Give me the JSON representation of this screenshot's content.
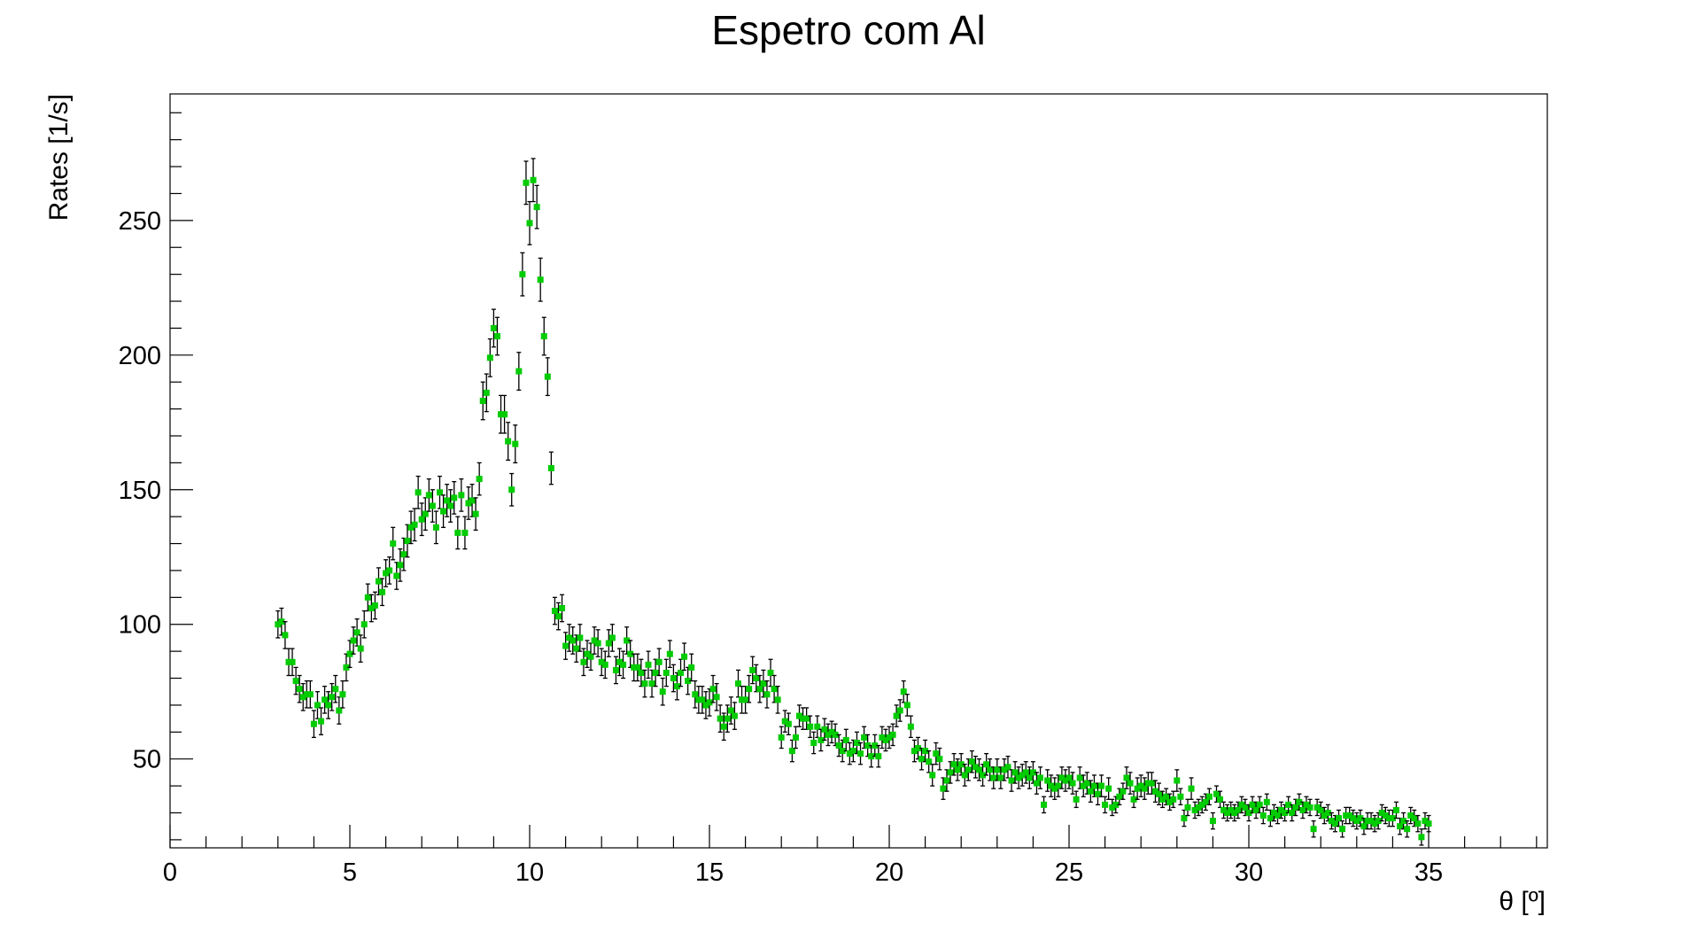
{
  "chart_data": {
    "type": "scatter",
    "title": "Espetro com Al",
    "xlabel": "θ [º]",
    "ylabel": "Rates [1/s]",
    "xlim": [
      0,
      38.3
    ],
    "ylim": [
      17,
      297
    ],
    "x_major_ticks": [
      0,
      5,
      10,
      15,
      20,
      25,
      30,
      35
    ],
    "x_tick_labels": [
      "0",
      "5",
      "10",
      "15",
      "20",
      "25",
      "30",
      "35"
    ],
    "y_major_ticks": [
      50,
      100,
      150,
      200,
      250
    ],
    "y_tick_labels": [
      "50",
      "100",
      "150",
      "200",
      "250"
    ],
    "grid": false,
    "marker_color": "#00cc00",
    "error_bar_color": "#000000",
    "x_error": 0.05,
    "points": [
      [
        3.0,
        100,
        5
      ],
      [
        3.1,
        101,
        5
      ],
      [
        3.2,
        96,
        5
      ],
      [
        3.3,
        86,
        5
      ],
      [
        3.4,
        86,
        5
      ],
      [
        3.5,
        79,
        5
      ],
      [
        3.6,
        76,
        5
      ],
      [
        3.7,
        73,
        5
      ],
      [
        3.8,
        74,
        5
      ],
      [
        3.9,
        74,
        5
      ],
      [
        4.0,
        63,
        5
      ],
      [
        4.1,
        70,
        5
      ],
      [
        4.2,
        64,
        5
      ],
      [
        4.3,
        72,
        5
      ],
      [
        4.4,
        70,
        5
      ],
      [
        4.5,
        73,
        5
      ],
      [
        4.6,
        76,
        5
      ],
      [
        4.7,
        68,
        5
      ],
      [
        4.8,
        74,
        5
      ],
      [
        4.9,
        84,
        5
      ],
      [
        5.0,
        89,
        5
      ],
      [
        5.1,
        94,
        5
      ],
      [
        5.2,
        97,
        5
      ],
      [
        5.3,
        91,
        5
      ],
      [
        5.4,
        100,
        5
      ],
      [
        5.5,
        110,
        5
      ],
      [
        5.6,
        106,
        5
      ],
      [
        5.7,
        107,
        5
      ],
      [
        5.8,
        116,
        5
      ],
      [
        5.9,
        112,
        5
      ],
      [
        6.0,
        119,
        5
      ],
      [
        6.1,
        120,
        5
      ],
      [
        6.2,
        130,
        6
      ],
      [
        6.3,
        118,
        5
      ],
      [
        6.4,
        122,
        6
      ],
      [
        6.5,
        126,
        6
      ],
      [
        6.6,
        131,
        6
      ],
      [
        6.7,
        136,
        6
      ],
      [
        6.8,
        137,
        6
      ],
      [
        6.9,
        149,
        6
      ],
      [
        7.0,
        139,
        6
      ],
      [
        7.1,
        141,
        6
      ],
      [
        7.2,
        148,
        6
      ],
      [
        7.3,
        144,
        6
      ],
      [
        7.4,
        136,
        6
      ],
      [
        7.5,
        149,
        6
      ],
      [
        7.6,
        142,
        6
      ],
      [
        7.7,
        146,
        6
      ],
      [
        7.8,
        144,
        6
      ],
      [
        7.9,
        147,
        6
      ],
      [
        8.0,
        134,
        6
      ],
      [
        8.1,
        148,
        6
      ],
      [
        8.2,
        134,
        6
      ],
      [
        8.3,
        145,
        6
      ],
      [
        8.4,
        146,
        6
      ],
      [
        8.5,
        141,
        6
      ],
      [
        8.6,
        154,
        6
      ],
      [
        8.7,
        183,
        7
      ],
      [
        8.8,
        186,
        7
      ],
      [
        8.9,
        199,
        7
      ],
      [
        9.0,
        210,
        7
      ],
      [
        9.1,
        207,
        7
      ],
      [
        9.2,
        178,
        7
      ],
      [
        9.3,
        178,
        7
      ],
      [
        9.4,
        168,
        7
      ],
      [
        9.5,
        150,
        6
      ],
      [
        9.6,
        167,
        7
      ],
      [
        9.7,
        194,
        7
      ],
      [
        9.8,
        230,
        8
      ],
      [
        9.9,
        264,
        8
      ],
      [
        10.0,
        249,
        8
      ],
      [
        10.1,
        265,
        8
      ],
      [
        10.2,
        255,
        8
      ],
      [
        10.3,
        228,
        8
      ],
      [
        10.4,
        207,
        7
      ],
      [
        10.5,
        192,
        7
      ],
      [
        10.6,
        158,
        6
      ],
      [
        10.7,
        105,
        5
      ],
      [
        10.8,
        103,
        5
      ],
      [
        10.9,
        106,
        5
      ],
      [
        11.0,
        92,
        5
      ],
      [
        11.1,
        95,
        5
      ],
      [
        11.2,
        94,
        5
      ],
      [
        11.3,
        91,
        5
      ],
      [
        11.4,
        95,
        5
      ],
      [
        11.5,
        86,
        5
      ],
      [
        11.6,
        89,
        5
      ],
      [
        11.7,
        88,
        5
      ],
      [
        11.8,
        94,
        5
      ],
      [
        11.9,
        93,
        5
      ],
      [
        12.0,
        86,
        5
      ],
      [
        12.1,
        85,
        5
      ],
      [
        12.2,
        93,
        5
      ],
      [
        12.3,
        95,
        5
      ],
      [
        12.4,
        83,
        5
      ],
      [
        12.5,
        86,
        5
      ],
      [
        12.6,
        85,
        5
      ],
      [
        12.7,
        94,
        5
      ],
      [
        12.8,
        89,
        5
      ],
      [
        12.9,
        84,
        5
      ],
      [
        13.0,
        84,
        5
      ],
      [
        13.1,
        82,
        5
      ],
      [
        13.2,
        78,
        5
      ],
      [
        13.3,
        85,
        5
      ],
      [
        13.4,
        78,
        5
      ],
      [
        13.5,
        82,
        5
      ],
      [
        13.6,
        86,
        5
      ],
      [
        13.7,
        75,
        5
      ],
      [
        13.8,
        82,
        5
      ],
      [
        13.9,
        89,
        5
      ],
      [
        14.0,
        80,
        5
      ],
      [
        14.1,
        77,
        5
      ],
      [
        14.2,
        82,
        5
      ],
      [
        14.3,
        88,
        5
      ],
      [
        14.4,
        79,
        5
      ],
      [
        14.5,
        84,
        5
      ],
      [
        14.6,
        74,
        5
      ],
      [
        14.7,
        72,
        5
      ],
      [
        14.8,
        72,
        5
      ],
      [
        14.9,
        70,
        5
      ],
      [
        15.0,
        71,
        5
      ],
      [
        15.1,
        76,
        5
      ],
      [
        15.2,
        73,
        5
      ],
      [
        15.3,
        65,
        5
      ],
      [
        15.4,
        62,
        5
      ],
      [
        15.5,
        65,
        5
      ],
      [
        15.6,
        68,
        5
      ],
      [
        15.7,
        66,
        5
      ],
      [
        15.8,
        78,
        5
      ],
      [
        15.9,
        72,
        5
      ],
      [
        16.0,
        72,
        5
      ],
      [
        16.1,
        76,
        5
      ],
      [
        16.2,
        83,
        5
      ],
      [
        16.3,
        80,
        5
      ],
      [
        16.4,
        76,
        5
      ],
      [
        16.5,
        78,
        5
      ],
      [
        16.6,
        74,
        5
      ],
      [
        16.7,
        82,
        5
      ],
      [
        16.8,
        76,
        5
      ],
      [
        16.9,
        72,
        5
      ],
      [
        17.0,
        58,
        4
      ],
      [
        17.1,
        64,
        4
      ],
      [
        17.2,
        63,
        4
      ],
      [
        17.3,
        53,
        4
      ],
      [
        17.4,
        58,
        4
      ],
      [
        17.5,
        66,
        4
      ],
      [
        17.6,
        65,
        4
      ],
      [
        17.7,
        65,
        4
      ],
      [
        17.8,
        62,
        4
      ],
      [
        17.9,
        56,
        4
      ],
      [
        18.0,
        62,
        4
      ],
      [
        18.1,
        57,
        4
      ],
      [
        18.2,
        61,
        4
      ],
      [
        18.3,
        59,
        4
      ],
      [
        18.4,
        60,
        4
      ],
      [
        18.5,
        59,
        4
      ],
      [
        18.6,
        55,
        4
      ],
      [
        18.7,
        53,
        4
      ],
      [
        18.8,
        57,
        4
      ],
      [
        18.9,
        52,
        4
      ],
      [
        19.0,
        53,
        4
      ],
      [
        19.1,
        56,
        4
      ],
      [
        19.2,
        52,
        4
      ],
      [
        19.3,
        58,
        4
      ],
      [
        19.4,
        55,
        4
      ],
      [
        19.5,
        51,
        4
      ],
      [
        19.6,
        55,
        4
      ],
      [
        19.7,
        51,
        4
      ],
      [
        19.8,
        58,
        4
      ],
      [
        19.9,
        57,
        4
      ],
      [
        20.0,
        58,
        4
      ],
      [
        20.1,
        59,
        4
      ],
      [
        20.2,
        66,
        4
      ],
      [
        20.3,
        68,
        4
      ],
      [
        20.4,
        75,
        4
      ],
      [
        20.5,
        70,
        4
      ],
      [
        20.6,
        62,
        4
      ],
      [
        20.7,
        53,
        4
      ],
      [
        20.8,
        54,
        4
      ],
      [
        20.9,
        50,
        4
      ],
      [
        21.0,
        53,
        4
      ],
      [
        21.1,
        49,
        4
      ],
      [
        21.2,
        44,
        4
      ],
      [
        21.3,
        52,
        4
      ],
      [
        21.4,
        50,
        4
      ],
      [
        21.5,
        39,
        4
      ],
      [
        21.6,
        42,
        4
      ],
      [
        21.7,
        45,
        4
      ],
      [
        21.8,
        48,
        4
      ],
      [
        21.9,
        46,
        4
      ],
      [
        22.0,
        48,
        4
      ],
      [
        22.1,
        44,
        4
      ],
      [
        22.2,
        46,
        4
      ],
      [
        22.3,
        49,
        4
      ],
      [
        22.4,
        47,
        4
      ],
      [
        22.5,
        46,
        4
      ],
      [
        22.6,
        44,
        4
      ],
      [
        22.7,
        48,
        4
      ],
      [
        22.8,
        46,
        4
      ],
      [
        22.9,
        43,
        4
      ],
      [
        23.0,
        46,
        4
      ],
      [
        23.1,
        43,
        4
      ],
      [
        23.2,
        46,
        4
      ],
      [
        23.3,
        47,
        4
      ],
      [
        23.4,
        42,
        4
      ],
      [
        23.5,
        45,
        4
      ],
      [
        23.6,
        43,
        4
      ],
      [
        23.7,
        44,
        4
      ],
      [
        23.8,
        45,
        4
      ],
      [
        23.9,
        43,
        4
      ],
      [
        24.0,
        45,
        4
      ],
      [
        24.1,
        41,
        4
      ],
      [
        24.2,
        43,
        4
      ],
      [
        24.3,
        33,
        3
      ],
      [
        24.4,
        42,
        4
      ],
      [
        24.5,
        40,
        4
      ],
      [
        24.6,
        39,
        4
      ],
      [
        24.7,
        40,
        4
      ],
      [
        24.8,
        43,
        4
      ],
      [
        24.9,
        42,
        4
      ],
      [
        25.0,
        43,
        4
      ],
      [
        25.1,
        41,
        4
      ],
      [
        25.2,
        35,
        3
      ],
      [
        25.3,
        43,
        4
      ],
      [
        25.4,
        40,
        4
      ],
      [
        25.5,
        41,
        4
      ],
      [
        25.6,
        38,
        4
      ],
      [
        25.7,
        40,
        4
      ],
      [
        25.8,
        37,
        4
      ],
      [
        25.9,
        40,
        4
      ],
      [
        26.0,
        33,
        3
      ],
      [
        26.1,
        39,
        4
      ],
      [
        26.2,
        32,
        3
      ],
      [
        26.3,
        33,
        3
      ],
      [
        26.4,
        36,
        3
      ],
      [
        26.5,
        38,
        3
      ],
      [
        26.6,
        43,
        4
      ],
      [
        26.7,
        41,
        4
      ],
      [
        26.8,
        35,
        3
      ],
      [
        26.9,
        39,
        4
      ],
      [
        27.0,
        40,
        4
      ],
      [
        27.1,
        39,
        4
      ],
      [
        27.2,
        41,
        4
      ],
      [
        27.3,
        41,
        4
      ],
      [
        27.4,
        38,
        4
      ],
      [
        27.5,
        37,
        4
      ],
      [
        27.6,
        35,
        3
      ],
      [
        27.7,
        36,
        3
      ],
      [
        27.8,
        34,
        3
      ],
      [
        27.9,
        35,
        3
      ],
      [
        28.0,
        42,
        4
      ],
      [
        28.1,
        36,
        3
      ],
      [
        28.2,
        28,
        3
      ],
      [
        28.3,
        32,
        3
      ],
      [
        28.4,
        39,
        4
      ],
      [
        28.5,
        31,
        3
      ],
      [
        28.6,
        32,
        3
      ],
      [
        28.7,
        33,
        3
      ],
      [
        28.8,
        34,
        3
      ],
      [
        28.9,
        36,
        3
      ],
      [
        29.0,
        27,
        3
      ],
      [
        29.1,
        37,
        3
      ],
      [
        29.2,
        35,
        3
      ],
      [
        29.3,
        31,
        3
      ],
      [
        29.4,
        30,
        3
      ],
      [
        29.5,
        31,
        3
      ],
      [
        29.6,
        30,
        3
      ],
      [
        29.7,
        31,
        3
      ],
      [
        29.8,
        33,
        3
      ],
      [
        29.9,
        32,
        3
      ],
      [
        30.0,
        30,
        3
      ],
      [
        30.1,
        33,
        3
      ],
      [
        30.2,
        31,
        3
      ],
      [
        30.3,
        33,
        3
      ],
      [
        30.4,
        29,
        3
      ],
      [
        30.5,
        34,
        3
      ],
      [
        30.6,
        28,
        3
      ],
      [
        30.7,
        30,
        3
      ],
      [
        30.8,
        29,
        3
      ],
      [
        30.9,
        31,
        3
      ],
      [
        31.0,
        30,
        3
      ],
      [
        31.1,
        33,
        3
      ],
      [
        31.2,
        30,
        3
      ],
      [
        31.3,
        32,
        3
      ],
      [
        31.4,
        34,
        3
      ],
      [
        31.5,
        31,
        3
      ],
      [
        31.6,
        33,
        3
      ],
      [
        31.7,
        32,
        3
      ],
      [
        31.8,
        24,
        3
      ],
      [
        31.9,
        32,
        3
      ],
      [
        32.0,
        31,
        3
      ],
      [
        32.1,
        29,
        3
      ],
      [
        32.2,
        30,
        3
      ],
      [
        32.3,
        27,
        3
      ],
      [
        32.4,
        26,
        3
      ],
      [
        32.5,
        28,
        3
      ],
      [
        32.6,
        24,
        3
      ],
      [
        32.7,
        29,
        3
      ],
      [
        32.8,
        29,
        3
      ],
      [
        32.9,
        28,
        3
      ],
      [
        33.0,
        27,
        3
      ],
      [
        33.1,
        28,
        3
      ],
      [
        33.2,
        25,
        3
      ],
      [
        33.3,
        27,
        3
      ],
      [
        33.4,
        27,
        3
      ],
      [
        33.5,
        26,
        3
      ],
      [
        33.6,
        27,
        3
      ],
      [
        33.7,
        30,
        3
      ],
      [
        33.8,
        29,
        3
      ],
      [
        33.9,
        28,
        3
      ],
      [
        34.0,
        28,
        3
      ],
      [
        34.1,
        31,
        3
      ],
      [
        34.2,
        25,
        3
      ],
      [
        34.3,
        27,
        3
      ],
      [
        34.4,
        24,
        3
      ],
      [
        34.5,
        29,
        3
      ],
      [
        34.6,
        28,
        3
      ],
      [
        34.7,
        26,
        3
      ],
      [
        34.8,
        21,
        3
      ],
      [
        34.9,
        27,
        3
      ],
      [
        35.0,
        26,
        3
      ]
    ]
  }
}
